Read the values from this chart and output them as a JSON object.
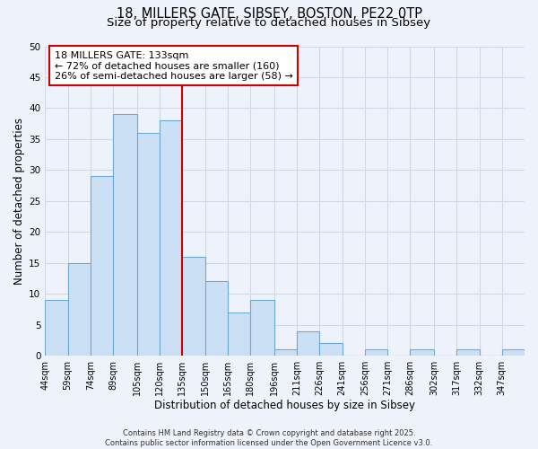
{
  "title": "18, MILLERS GATE, SIBSEY, BOSTON, PE22 0TP",
  "subtitle": "Size of property relative to detached houses in Sibsey",
  "xlabel": "Distribution of detached houses by size in Sibsey",
  "ylabel": "Number of detached properties",
  "bar_color": "#cce0f5",
  "bar_edge_color": "#6aaad4",
  "background_color": "#eef2fa",
  "grid_color": "#d0d8e8",
  "bin_labels": [
    "44sqm",
    "59sqm",
    "74sqm",
    "89sqm",
    "105sqm",
    "120sqm",
    "135sqm",
    "150sqm",
    "165sqm",
    "180sqm",
    "196sqm",
    "211sqm",
    "226sqm",
    "241sqm",
    "256sqm",
    "271sqm",
    "286sqm",
    "302sqm",
    "317sqm",
    "332sqm",
    "347sqm"
  ],
  "bin_edges": [
    44,
    59,
    74,
    89,
    105,
    120,
    135,
    150,
    165,
    180,
    196,
    211,
    226,
    241,
    256,
    271,
    286,
    302,
    317,
    332,
    347,
    362
  ],
  "counts": [
    9,
    15,
    29,
    39,
    36,
    38,
    16,
    12,
    7,
    9,
    1,
    4,
    2,
    0,
    1,
    0,
    1,
    0,
    1,
    0,
    1
  ],
  "vline_x": 135,
  "vline_color": "#cc0000",
  "ylim": [
    0,
    50
  ],
  "yticks": [
    0,
    5,
    10,
    15,
    20,
    25,
    30,
    35,
    40,
    45,
    50
  ],
  "annotation_title": "18 MILLERS GATE: 133sqm",
  "annotation_line1": "← 72% of detached houses are smaller (160)",
  "annotation_line2": "26% of semi-detached houses are larger (58) →",
  "annotation_box_color": "#ffffff",
  "annotation_box_edge": "#cc0000",
  "footer_line1": "Contains HM Land Registry data © Crown copyright and database right 2025.",
  "footer_line2": "Contains public sector information licensed under the Open Government Licence v3.0.",
  "title_fontsize": 10.5,
  "subtitle_fontsize": 9.5,
  "axis_label_fontsize": 8.5,
  "tick_fontsize": 7,
  "annotation_fontsize": 8,
  "footer_fontsize": 6
}
